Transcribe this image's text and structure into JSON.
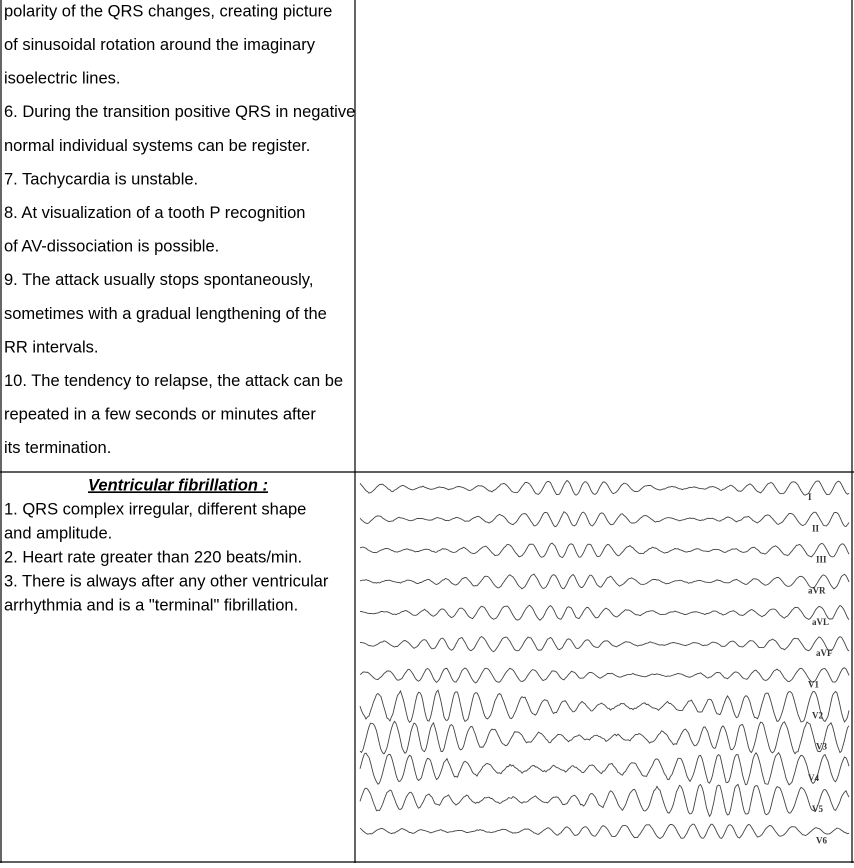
{
  "table": {
    "rows": [
      {
        "left": {
          "lines": [
            "polarity of the QRS changes, creating picture",
            "of sinusoidal rotation around the imaginary",
            "isoelectric lines.",
            "6. During the transition positive QRS in negative",
            "normal individual systems can be register.",
            "7. Tachycardia is unstable.",
            "8. At visualization of a tooth P recognition",
            "of AV-dissociation is possible.",
            "9. The attack usually stops spontaneously,",
            "sometimes with a gradual lengthening of the",
            "RR intervals.",
            "10. The tendency to relapse, the attack can be",
            "repeated in a few seconds or minutes after",
            "its termination."
          ]
        }
      },
      {
        "left": {
          "heading": "Ventricular fibrillation :",
          "lines": [
            "1. QRS complex irregular, different shape",
            "and amplitude.",
            "2. Heart rate greater than 220 beats/min.",
            "3. There is always after any other ventricular",
            "arrhythmia and is a \"terminal\" fibrillation."
          ]
        },
        "right": {
          "ecg_leads": [
            "I",
            "II",
            "III",
            "aVR",
            "aVL",
            "aVF",
            "V1",
            "V2",
            "V3",
            "V4",
            "V5",
            "V6"
          ]
        }
      }
    ]
  }
}
